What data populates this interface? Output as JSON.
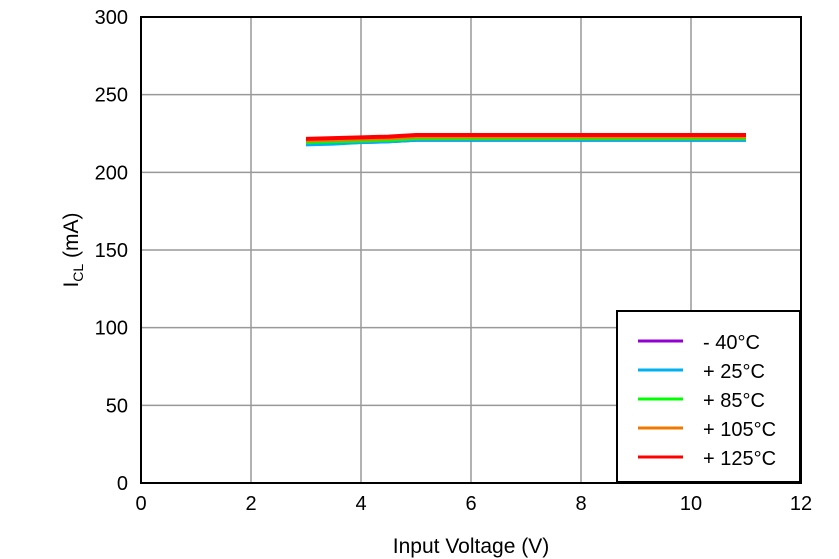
{
  "chart_data": {
    "type": "line",
    "title": "",
    "xlabel": "Input Voltage (V)",
    "ylabel_main": "I",
    "ylabel_sub": "CL",
    "ylabel_unit": " (mA)",
    "xlim": [
      0,
      12
    ],
    "ylim": [
      0,
      300
    ],
    "xticks": [
      0,
      2,
      4,
      6,
      8,
      10,
      12
    ],
    "yticks": [
      0,
      50,
      100,
      150,
      200,
      250,
      300
    ],
    "grid": true,
    "legend_placement": "bottom-right",
    "x": [
      3,
      3.5,
      4,
      4.5,
      5,
      6,
      7,
      8,
      9,
      10,
      11
    ],
    "series": [
      {
        "name": "- 40°C",
        "color": "#9400D3",
        "values": [
          218.5,
          219,
          219.5,
          220,
          221,
          221,
          221,
          221,
          221,
          221,
          221
        ]
      },
      {
        "name": "+ 25°C",
        "color": "#00B0F0",
        "values": [
          218,
          218.5,
          219.5,
          220,
          221,
          221,
          221,
          221,
          221,
          221,
          221
        ]
      },
      {
        "name": "+ 85°C",
        "color": "#00FF00",
        "values": [
          219.5,
          220,
          220.5,
          221,
          222,
          222,
          222,
          222,
          222,
          222,
          222
        ]
      },
      {
        "name": "+ 105°C",
        "color": "#F07800",
        "values": [
          220.5,
          221,
          221.5,
          222,
          223,
          223,
          223,
          223,
          223,
          223,
          223
        ]
      },
      {
        "name": "+ 125°C",
        "color": "#FF0000",
        "values": [
          221.5,
          222,
          222.5,
          223,
          224,
          224,
          224,
          224,
          224,
          224,
          224
        ]
      }
    ]
  }
}
